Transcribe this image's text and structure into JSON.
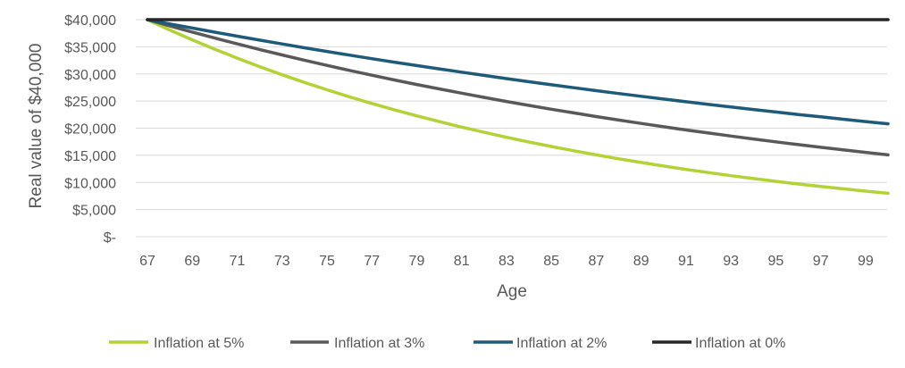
{
  "chart_data": {
    "type": "line",
    "title": "",
    "xlabel": "Age",
    "ylabel": "Real value of $40,000",
    "x": [
      67,
      68,
      69,
      70,
      71,
      72,
      73,
      74,
      75,
      76,
      77,
      78,
      79,
      80,
      81,
      82,
      83,
      84,
      85,
      86,
      87,
      88,
      89,
      90,
      91,
      92,
      93,
      94,
      95,
      96,
      97,
      98,
      99,
      100
    ],
    "x_tick_labels": [
      "67",
      "69",
      "71",
      "73",
      "75",
      "77",
      "79",
      "81",
      "83",
      "85",
      "87",
      "89",
      "91",
      "93",
      "95",
      "97",
      "99"
    ],
    "y_tick_labels": [
      "$-",
      "$5,000",
      "$10,000",
      "$15,000",
      "$20,000",
      "$25,000",
      "$30,000",
      "$35,000",
      "$40,000"
    ],
    "y_ticks": [
      0,
      5000,
      10000,
      15000,
      20000,
      25000,
      30000,
      35000,
      40000
    ],
    "ylim": [
      0,
      40000
    ],
    "grid": "horizontal",
    "legend_position": "bottom",
    "series": [
      {
        "name": "Inflation at 5%",
        "color": "#b3d235",
        "values": [
          40000,
          38095,
          36281,
          34554,
          32908,
          31341,
          29849,
          28427,
          27074,
          25784,
          24556,
          23387,
          22273,
          21213,
          20203,
          19241,
          18324,
          17452,
          16621,
          15829,
          15075,
          14358,
          13674,
          13023,
          12403,
          11812,
          11250,
          10714,
          10204,
          9718,
          9255,
          8815,
          8395,
          7995
        ]
      },
      {
        "name": "Inflation at 3%",
        "color": "#595959",
        "values": [
          40000,
          38835,
          37704,
          36606,
          35539,
          34504,
          33499,
          32524,
          31576,
          30657,
          29764,
          28897,
          28055,
          27238,
          26445,
          25674,
          24926,
          24200,
          23496,
          22811,
          22147,
          21502,
          20876,
          20268,
          19677,
          19104,
          18548,
          18007,
          17483,
          16974,
          16479,
          16000,
          15534,
          15081
        ]
      },
      {
        "name": "Inflation at 2%",
        "color": "#1e5a7a",
        "values": [
          40000,
          39216,
          38447,
          37693,
          36954,
          36230,
          35519,
          34823,
          34140,
          33471,
          32814,
          32171,
          31540,
          30922,
          30316,
          29721,
          29138,
          28567,
          28007,
          27458,
          26920,
          26392,
          25874,
          25367,
          24870,
          24382,
          23904,
          23435,
          22976,
          22525,
          22084,
          21651,
          21226,
          20810
        ]
      },
      {
        "name": "Inflation at 0%",
        "color": "#262626",
        "values": [
          40000,
          40000,
          40000,
          40000,
          40000,
          40000,
          40000,
          40000,
          40000,
          40000,
          40000,
          40000,
          40000,
          40000,
          40000,
          40000,
          40000,
          40000,
          40000,
          40000,
          40000,
          40000,
          40000,
          40000,
          40000,
          40000,
          40000,
          40000,
          40000,
          40000,
          40000,
          40000,
          40000,
          40000
        ]
      }
    ]
  }
}
